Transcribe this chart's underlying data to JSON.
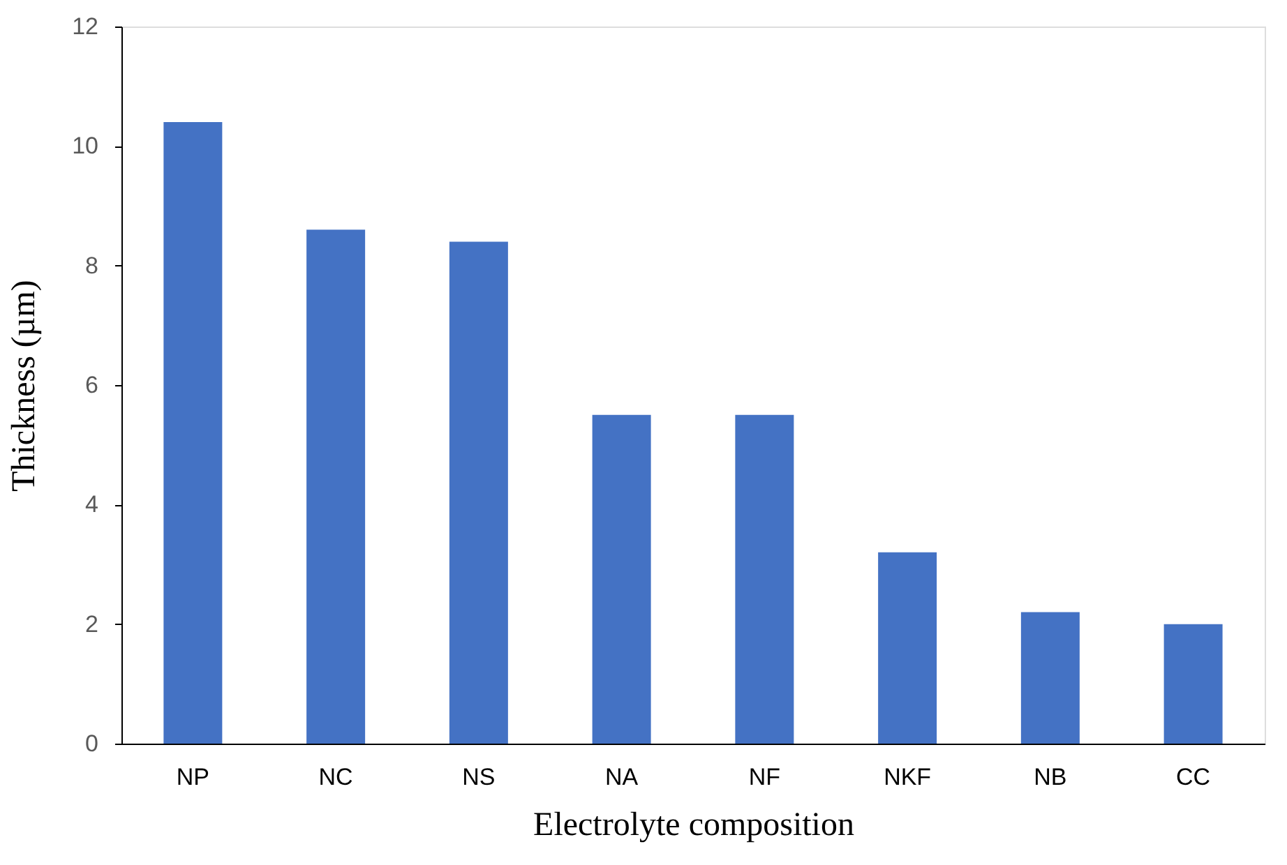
{
  "chart_data": {
    "type": "bar",
    "xlabel": "Electrolyte composition",
    "ylabel": "Thickness (µm)",
    "categories": [
      "NP",
      "NC",
      "NS",
      "NA",
      "NF",
      "NKF",
      "NB",
      "CC"
    ],
    "values": [
      10.4,
      8.6,
      8.4,
      5.5,
      5.5,
      3.2,
      2.2,
      2.0
    ],
    "color": "#4472c4",
    "ylim": [
      0,
      12
    ],
    "yticks": [
      0,
      2,
      4,
      6,
      8,
      10,
      12
    ],
    "grid": false
  }
}
